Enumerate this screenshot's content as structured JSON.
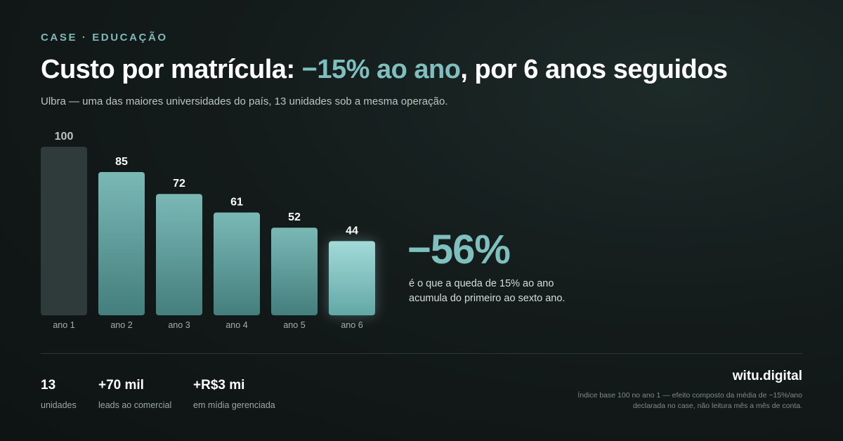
{
  "header": {
    "eyebrow": "CASE · EDUCAÇÃO",
    "title_before": "Custo por matrícula: ",
    "title_accent": "−15% ao ano",
    "title_after": ", por 6 anos seguidos",
    "subtitle": "Ulbra — uma das maiores universidades do país, 13 unidades sob a mesma operação."
  },
  "chart_data": {
    "type": "bar",
    "title": "",
    "xlabel": "",
    "ylabel": "",
    "categories": [
      "ano 1",
      "ano 2",
      "ano 3",
      "ano 4",
      "ano 5",
      "ano 6"
    ],
    "values": [
      100,
      85,
      72,
      61,
      52,
      44
    ],
    "ylim": [
      0,
      100
    ],
    "grid": false,
    "data_labels": true,
    "colors": {
      "first_bar": "#2f3a3a",
      "bar_top": "#7ab8b6",
      "bar_bottom": "#447e7d",
      "last_bar_top": "#a2dad8",
      "last_bar_bottom": "#63a8a6",
      "first_label": "#b9c4c3",
      "label": "#ffffff",
      "tick": "#a3aead"
    }
  },
  "highlight": {
    "value": "−56%",
    "description": "é o que a queda de 15% ao ano acumula do primeiro ao sexto ano."
  },
  "stats": [
    {
      "value": "13",
      "label": "unidades"
    },
    {
      "value": "+70 mil",
      "label": "leads ao comercial"
    },
    {
      "value": "+R$3 mi",
      "label": "em mídia gerenciada"
    }
  ],
  "footer": {
    "brand": "witu.digital",
    "footnote": "Índice base 100 no ano 1 — efeito composto da média de −15%/ano declarada no case, não leitura mês a mês de conta."
  }
}
